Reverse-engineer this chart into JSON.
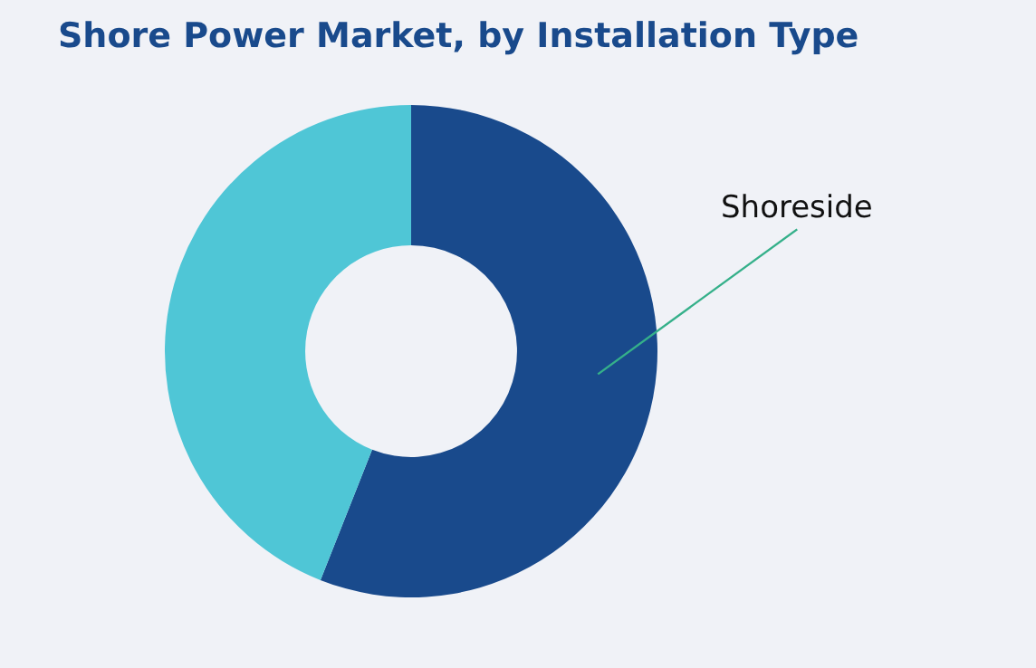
{
  "chart_data": {
    "type": "donut",
    "title": "Shore Power Market, by Installation Type",
    "categories": [
      "Shoreside",
      null
    ],
    "values": [
      56,
      44
    ],
    "colors": [
      "#194a8c",
      "#4fc6d6"
    ],
    "legend": false
  }
}
